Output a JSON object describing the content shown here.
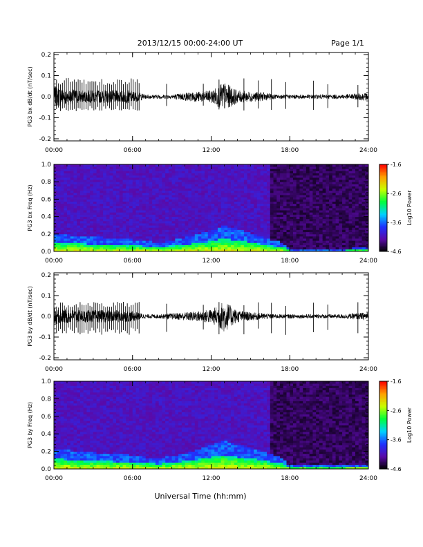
{
  "header": {
    "title": "2013/12/15  00:00-24:00 UT",
    "page": "Page 1/1"
  },
  "footer": {
    "xlabel": "Universal Time (hh:mm)"
  },
  "colors": {
    "trace": "#000000",
    "spectrogram_background": "#17041f",
    "colorbar": [
      "#000000",
      "#5a0aa8",
      "#1e32ff",
      "#00d2ff",
      "#00ff3c",
      "#c8ff00",
      "#ffa000",
      "#ff0000"
    ]
  },
  "chart_data": [
    {
      "type": "line",
      "ylabel": "PG3 bx dB/dt (nT/sec)",
      "x_ticks": [
        "00:00",
        "06:00",
        "12:00",
        "18:00",
        "24:00"
      ],
      "x_range_hours": [
        0,
        24
      ],
      "y_ticks": [
        "-0.2",
        "-0.1",
        "0.0",
        "0.1",
        "0.2"
      ],
      "ylim": [
        -0.21,
        0.21
      ],
      "envelope": {
        "hours": [
          0,
          1,
          2,
          3,
          4,
          5,
          6,
          7,
          8,
          9,
          10,
          11,
          12,
          12.5,
          13,
          13.5,
          14,
          15,
          16,
          17,
          18,
          19,
          20,
          21,
          22,
          23,
          24
        ],
        "amplitude": [
          0.05,
          0.04,
          0.03,
          0.03,
          0.03,
          0.03,
          0.03,
          0.01,
          0.01,
          0.01,
          0.02,
          0.025,
          0.03,
          0.05,
          0.07,
          0.05,
          0.03,
          0.025,
          0.02,
          0.01,
          0.01,
          0.01,
          0.01,
          0.01,
          0.01,
          0.015,
          0.02
        ]
      },
      "spikes_hours": [
        0.2,
        0.35,
        0.5,
        0.65,
        0.8,
        0.95,
        1.1,
        1.25,
        1.4,
        1.55,
        1.7,
        1.85,
        2.0,
        2.15,
        2.3,
        2.45,
        2.6,
        2.75,
        2.9,
        3.05,
        3.2,
        3.35,
        3.5,
        3.65,
        3.8,
        3.95,
        4.1,
        4.25,
        4.4,
        4.55,
        4.7,
        4.85,
        5.0,
        5.15,
        5.3,
        5.45,
        5.6,
        5.75,
        5.9,
        6.05,
        6.2,
        6.35,
        6.5,
        8.6,
        11.4,
        12.6,
        14.5,
        15.6,
        16.6,
        17.7,
        19.8,
        20.9,
        23.2
      ],
      "spike_amplitude": [
        0.09,
        -0.07
      ]
    },
    {
      "type": "heatmap",
      "ylabel": "PG3 bx Freq (Hz)",
      "x_ticks": [
        "00:00",
        "06:00",
        "12:00",
        "18:00",
        "24:00"
      ],
      "x_range_hours": [
        0,
        24
      ],
      "y_ticks": [
        "0.0",
        "0.2",
        "0.4",
        "0.6",
        "0.8",
        "1.0"
      ],
      "ylim": [
        0,
        1.0
      ],
      "colorbar_label": "Log10 Power",
      "colorbar_ticks": [
        "-1.6",
        "-2.6",
        "-3.6",
        "-4.6"
      ],
      "zlim": [
        -4.6,
        -1.6
      ],
      "low_frequency_band": {
        "hours": [
          0,
          2,
          4,
          6,
          8,
          10,
          12,
          13,
          14,
          16,
          17.5,
          18,
          22,
          23,
          24
        ],
        "top_hz": [
          0.1,
          0.09,
          0.08,
          0.07,
          0.05,
          0.08,
          0.12,
          0.15,
          0.13,
          0.08,
          0.05,
          0.01,
          0.01,
          0.02,
          0.02
        ]
      },
      "quiet_after_hour": 16.5
    },
    {
      "type": "line",
      "ylabel": "PG3 by dB/dt (nT/sec)",
      "x_ticks": [
        "00:00",
        "06:00",
        "12:00",
        "18:00",
        "24:00"
      ],
      "x_range_hours": [
        0,
        24
      ],
      "y_ticks": [
        "-0.2",
        "-0.1",
        "0.0",
        "0.1",
        "0.2"
      ],
      "ylim": [
        -0.21,
        0.21
      ],
      "envelope": {
        "hours": [
          0,
          1,
          2,
          3,
          4,
          5,
          6,
          7,
          8,
          9,
          10,
          11,
          12,
          12.5,
          13,
          13.5,
          14,
          15,
          16,
          17,
          18,
          19,
          20,
          21,
          22,
          23,
          24
        ],
        "amplitude": [
          0.04,
          0.035,
          0.03,
          0.03,
          0.03,
          0.03,
          0.025,
          0.01,
          0.01,
          0.015,
          0.02,
          0.025,
          0.035,
          0.05,
          0.08,
          0.05,
          0.03,
          0.02,
          0.015,
          0.01,
          0.01,
          0.01,
          0.01,
          0.01,
          0.01,
          0.015,
          0.02
        ]
      },
      "spikes_hours": [
        0.2,
        0.35,
        0.5,
        0.65,
        0.8,
        0.95,
        1.1,
        1.25,
        1.4,
        1.55,
        1.7,
        1.85,
        2.0,
        2.15,
        2.3,
        2.45,
        2.6,
        2.75,
        2.9,
        3.05,
        3.2,
        3.35,
        3.5,
        3.65,
        3.8,
        3.95,
        4.1,
        4.25,
        4.4,
        4.55,
        4.7,
        4.85,
        5.0,
        5.15,
        5.3,
        5.45,
        5.6,
        5.75,
        5.9,
        6.05,
        6.2,
        6.35,
        6.5,
        8.6,
        11.4,
        12.6,
        14.5,
        15.6,
        16.6,
        17.7,
        19.8,
        20.9,
        23.2
      ],
      "spike_amplitude": [
        0.07,
        -0.09
      ]
    },
    {
      "type": "heatmap",
      "ylabel": "PG3 by Freq (Hz)",
      "x_ticks": [
        "00:00",
        "06:00",
        "12:00",
        "18:00",
        "24:00"
      ],
      "x_range_hours": [
        0,
        24
      ],
      "y_ticks": [
        "0.0",
        "0.2",
        "0.4",
        "0.6",
        "0.8",
        "1.0"
      ],
      "ylim": [
        0,
        1.0
      ],
      "colorbar_label": "Log10 Power",
      "colorbar_ticks": [
        "-1.6",
        "-2.6",
        "-3.6",
        "-4.6"
      ],
      "zlim": [
        -4.6,
        -1.6
      ],
      "low_frequency_band": {
        "hours": [
          0,
          2,
          4,
          6,
          8,
          10,
          12,
          13,
          14,
          16,
          17.5,
          18,
          22,
          23,
          24
        ],
        "top_hz": [
          0.12,
          0.1,
          0.09,
          0.08,
          0.06,
          0.09,
          0.14,
          0.16,
          0.14,
          0.1,
          0.06,
          0.02,
          0.02,
          0.03,
          0.03
        ]
      },
      "quiet_after_hour": 16.5
    }
  ]
}
